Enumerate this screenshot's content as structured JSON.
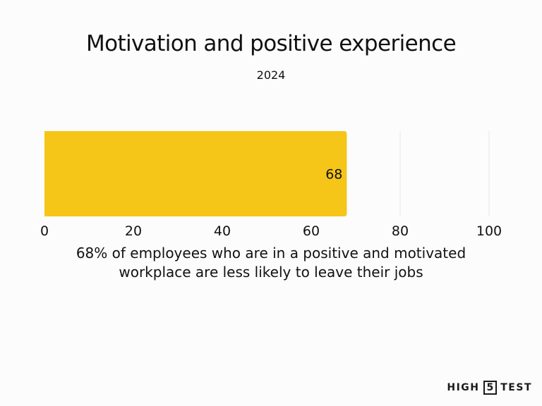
{
  "chart_data": {
    "type": "bar",
    "orientation": "horizontal",
    "title": "Motivation and positive experience",
    "subtitle": "2024",
    "categories": [
      ""
    ],
    "values": [
      68
    ],
    "data_labels": [
      "68"
    ],
    "xlabel": "68% of employees who are in a positive and motivated workplace are less likely to leave their jobs",
    "xlabel_lines": [
      "68% of employees who are in a positive and motivated",
      "workplace are less likely to leave their jobs"
    ],
    "xlim": [
      0,
      100
    ],
    "xticks": [
      0,
      20,
      40,
      60,
      80,
      100
    ],
    "grid": "vertical",
    "legend": "none"
  },
  "colors": {
    "bar": "#f5c518",
    "grid": "#e6e6e6",
    "text": "#111111",
    "background": "#fcfcfc"
  },
  "brand": {
    "left": "HIGH",
    "box": "5",
    "right": "TEST"
  }
}
